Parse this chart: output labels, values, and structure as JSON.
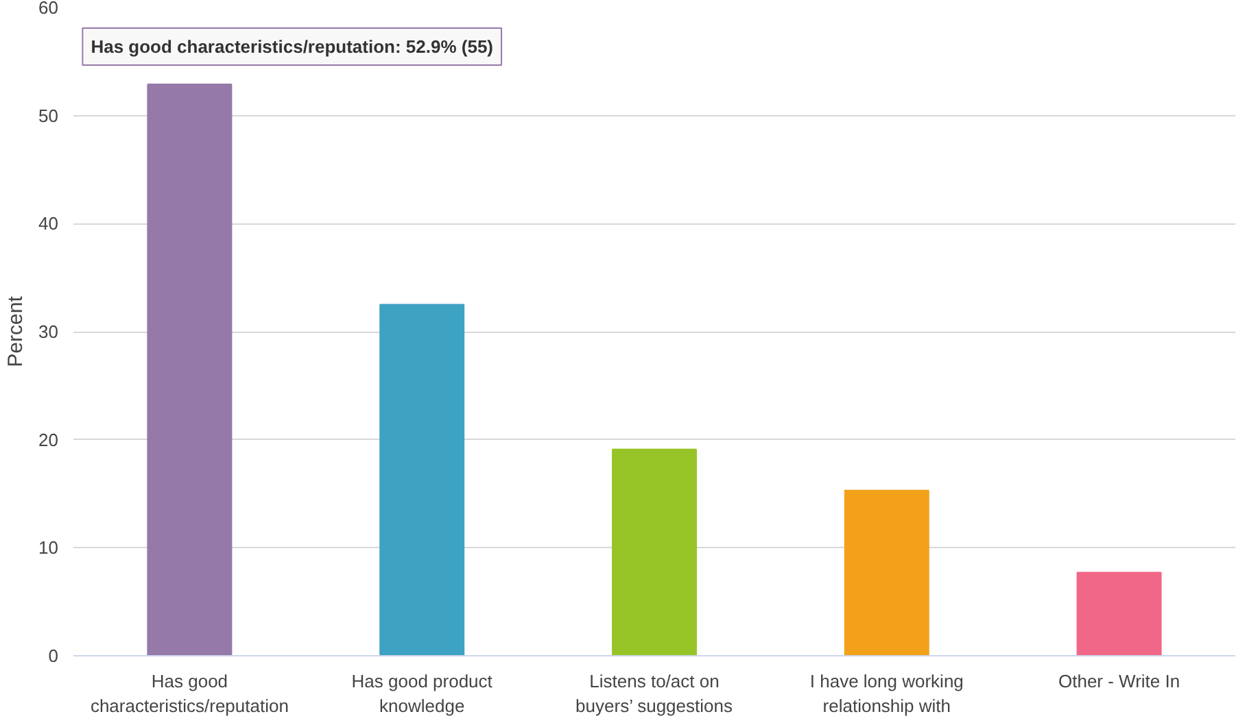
{
  "chart_data": {
    "type": "bar",
    "ylabel": "Percent",
    "categories": [
      "Has good characteristics/reputation",
      "Has good product knowledge",
      "Listens to/act on buyers’ suggestions",
      "I have long working relationship with",
      "Other - Write In"
    ],
    "values": [
      52.9,
      32.5,
      19.1,
      15.3,
      7.7
    ],
    "colors": [
      "#9579a8",
      "#3ea2c2",
      "#97c527",
      "#f3a11b",
      "#f06787"
    ],
    "ylim": [
      0,
      60
    ],
    "yticks": [
      0,
      10,
      20,
      30,
      40,
      50,
      60
    ],
    "grid": "y",
    "annotations": [
      {
        "text": "Has good characteristics/reputation: 52.9% (55)",
        "x": "Has good characteristics/reputation",
        "y": 52.9
      }
    ]
  }
}
